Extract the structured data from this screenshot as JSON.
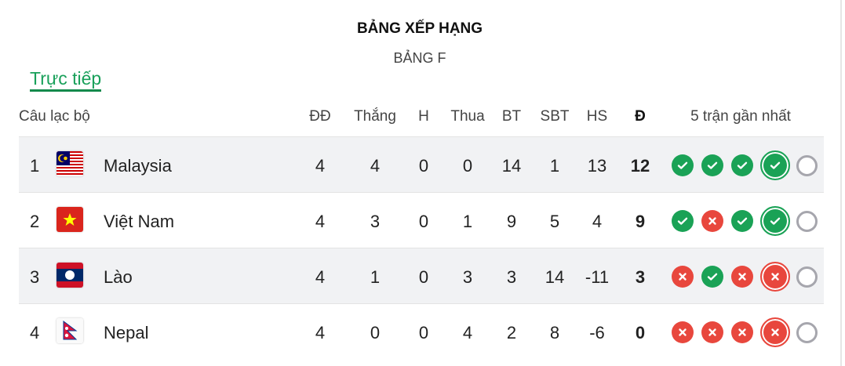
{
  "title": "BẢNG XẾP HẠNG",
  "group": "BẢNG F",
  "live_tab": "Trực tiếp",
  "headers": {
    "club": "Câu lạc bộ",
    "played": "ĐĐ",
    "won": "Thắng",
    "drawn": "H",
    "lost": "Thua",
    "gf": "BT",
    "ga": "SBT",
    "gd": "HS",
    "points": "Đ",
    "form": "5 trận gần nhất"
  },
  "colors": {
    "win": "#1aa256",
    "loss": "#e8473d",
    "upcoming": "#a6a6ad",
    "accent": "#19a05a"
  },
  "rows": [
    {
      "rank": "1",
      "flag": "malaysia",
      "team": "Malaysia",
      "played": "4",
      "won": "4",
      "drawn": "0",
      "lost": "0",
      "gf": "14",
      "ga": "1",
      "gd": "13",
      "points": "12",
      "form": [
        "W",
        "W",
        "W",
        "W",
        "upcoming"
      ]
    },
    {
      "rank": "2",
      "flag": "vietnam",
      "team": "Việt Nam",
      "played": "4",
      "won": "3",
      "drawn": "0",
      "lost": "1",
      "gf": "9",
      "ga": "5",
      "gd": "4",
      "points": "9",
      "form": [
        "W",
        "L",
        "W",
        "W",
        "upcoming"
      ]
    },
    {
      "rank": "3",
      "flag": "laos",
      "team": "Lào",
      "played": "4",
      "won": "1",
      "drawn": "0",
      "lost": "3",
      "gf": "3",
      "ga": "14",
      "gd": "-11",
      "points": "3",
      "form": [
        "L",
        "W",
        "L",
        "L",
        "upcoming"
      ]
    },
    {
      "rank": "4",
      "flag": "nepal",
      "team": "Nepal",
      "played": "4",
      "won": "0",
      "drawn": "0",
      "lost": "4",
      "gf": "2",
      "ga": "8",
      "gd": "-6",
      "points": "0",
      "form": [
        "L",
        "L",
        "L",
        "L",
        "upcoming"
      ]
    }
  ]
}
